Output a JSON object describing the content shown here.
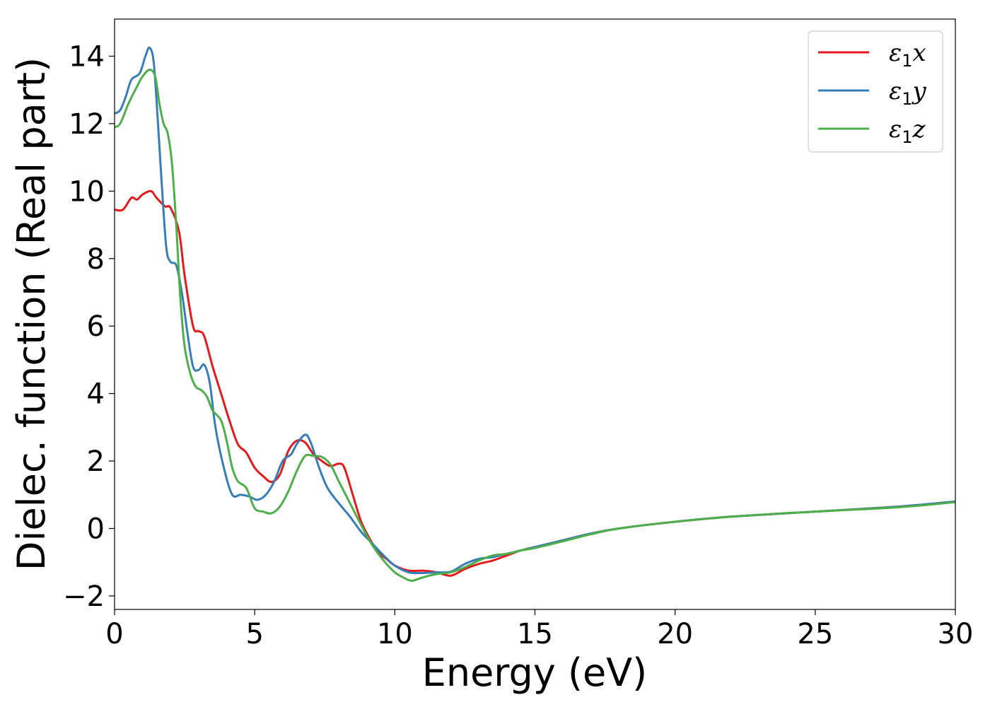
{
  "chart_data": {
    "type": "line",
    "title": "",
    "xlabel": "Energy (eV)",
    "ylabel": "Dielec. function (Real part)",
    "xlim": [
      0,
      30
    ],
    "ylim": [
      -2.4,
      15.1
    ],
    "xticks": [
      0,
      5,
      10,
      15,
      20,
      25,
      30
    ],
    "yticks": [
      -2,
      0,
      2,
      4,
      6,
      8,
      10,
      12,
      14
    ],
    "xtick_labels": [
      "0",
      "5",
      "10",
      "15",
      "20",
      "25",
      "30"
    ],
    "ytick_labels": [
      "−2",
      "0",
      "2",
      "4",
      "6",
      "8",
      "10",
      "12",
      "14"
    ],
    "grid": false,
    "legend_position": "top-right",
    "series": [
      {
        "name": "ε1x",
        "legend": {
          "base": "ε",
          "sub": "1",
          "var": "x"
        },
        "color": "#e41a1c",
        "points": [
          [
            0,
            9.45
          ],
          [
            0.3,
            9.45
          ],
          [
            0.6,
            9.8
          ],
          [
            0.8,
            9.75
          ],
          [
            1.0,
            9.9
          ],
          [
            1.3,
            10.0
          ],
          [
            1.5,
            9.8
          ],
          [
            1.8,
            9.55
          ],
          [
            2.0,
            9.5
          ],
          [
            2.3,
            8.8
          ],
          [
            2.5,
            7.5
          ],
          [
            2.8,
            6.0
          ],
          [
            3.0,
            5.85
          ],
          [
            3.2,
            5.7
          ],
          [
            3.5,
            4.8
          ],
          [
            3.8,
            4.0
          ],
          [
            4.1,
            3.2
          ],
          [
            4.4,
            2.5
          ],
          [
            4.7,
            2.25
          ],
          [
            5.0,
            1.8
          ],
          [
            5.3,
            1.55
          ],
          [
            5.6,
            1.38
          ],
          [
            5.9,
            1.6
          ],
          [
            6.2,
            2.3
          ],
          [
            6.5,
            2.6
          ],
          [
            6.8,
            2.55
          ],
          [
            7.1,
            2.2
          ],
          [
            7.4,
            2.0
          ],
          [
            7.7,
            1.85
          ],
          [
            8.0,
            1.92
          ],
          [
            8.2,
            1.8
          ],
          [
            8.5,
            1.0
          ],
          [
            8.8,
            0.2
          ],
          [
            9.1,
            -0.3
          ],
          [
            9.4,
            -0.7
          ],
          [
            9.7,
            -0.9
          ],
          [
            10.0,
            -1.1
          ],
          [
            10.5,
            -1.25
          ],
          [
            11.0,
            -1.25
          ],
          [
            11.5,
            -1.3
          ],
          [
            12.0,
            -1.4
          ],
          [
            12.5,
            -1.2
          ],
          [
            13.0,
            -1.05
          ],
          [
            13.5,
            -0.95
          ],
          [
            14.0,
            -0.8
          ],
          [
            14.5,
            -0.65
          ],
          [
            15.0,
            -0.55
          ],
          [
            16.0,
            -0.35
          ],
          [
            17.0,
            -0.15
          ],
          [
            18.0,
            0.0
          ],
          [
            20.0,
            0.2
          ],
          [
            22.0,
            0.35
          ],
          [
            25.0,
            0.5
          ],
          [
            28.0,
            0.65
          ],
          [
            30.0,
            0.8
          ]
        ]
      },
      {
        "name": "ε1y",
        "legend": {
          "base": "ε",
          "sub": "1",
          "var": "y"
        },
        "color": "#377eb8",
        "points": [
          [
            0,
            12.3
          ],
          [
            0.2,
            12.4
          ],
          [
            0.4,
            12.8
          ],
          [
            0.6,
            13.3
          ],
          [
            0.9,
            13.5
          ],
          [
            1.1,
            14.0
          ],
          [
            1.25,
            14.25
          ],
          [
            1.4,
            13.8
          ],
          [
            1.55,
            12.0
          ],
          [
            1.7,
            10.0
          ],
          [
            1.85,
            8.3
          ],
          [
            2.0,
            7.9
          ],
          [
            2.2,
            7.8
          ],
          [
            2.4,
            7.0
          ],
          [
            2.6,
            5.8
          ],
          [
            2.8,
            4.8
          ],
          [
            3.0,
            4.7
          ],
          [
            3.2,
            4.85
          ],
          [
            3.4,
            4.3
          ],
          [
            3.6,
            3.0
          ],
          [
            3.9,
            1.8
          ],
          [
            4.2,
            1.0
          ],
          [
            4.5,
            1.0
          ],
          [
            4.8,
            0.95
          ],
          [
            5.1,
            0.85
          ],
          [
            5.4,
            1.0
          ],
          [
            5.7,
            1.4
          ],
          [
            6.0,
            2.0
          ],
          [
            6.3,
            2.2
          ],
          [
            6.5,
            2.5
          ],
          [
            6.8,
            2.78
          ],
          [
            7.0,
            2.55
          ],
          [
            7.3,
            1.8
          ],
          [
            7.6,
            1.2
          ],
          [
            8.0,
            0.75
          ],
          [
            8.4,
            0.35
          ],
          [
            8.8,
            -0.1
          ],
          [
            9.2,
            -0.45
          ],
          [
            9.6,
            -0.8
          ],
          [
            10.0,
            -1.1
          ],
          [
            10.5,
            -1.3
          ],
          [
            11.0,
            -1.32
          ],
          [
            11.5,
            -1.3
          ],
          [
            12.0,
            -1.28
          ],
          [
            12.5,
            -1.05
          ],
          [
            13.0,
            -0.9
          ],
          [
            13.5,
            -0.85
          ],
          [
            14.0,
            -0.75
          ],
          [
            14.5,
            -0.65
          ],
          [
            15.0,
            -0.55
          ],
          [
            16.0,
            -0.35
          ],
          [
            17.0,
            -0.15
          ],
          [
            18.0,
            0.0
          ],
          [
            20.0,
            0.2
          ],
          [
            22.0,
            0.35
          ],
          [
            25.0,
            0.5
          ],
          [
            28.0,
            0.65
          ],
          [
            30.0,
            0.8
          ]
        ]
      },
      {
        "name": "ε1z",
        "legend": {
          "base": "ε",
          "sub": "1",
          "var": "z"
        },
        "color": "#4daf4a",
        "points": [
          [
            0,
            11.9
          ],
          [
            0.2,
            12.0
          ],
          [
            0.5,
            12.6
          ],
          [
            0.8,
            13.1
          ],
          [
            1.0,
            13.4
          ],
          [
            1.25,
            13.6
          ],
          [
            1.45,
            13.4
          ],
          [
            1.6,
            12.6
          ],
          [
            1.75,
            12.0
          ],
          [
            1.9,
            11.7
          ],
          [
            2.05,
            10.8
          ],
          [
            2.2,
            9.0
          ],
          [
            2.35,
            6.8
          ],
          [
            2.5,
            5.4
          ],
          [
            2.7,
            4.6
          ],
          [
            2.9,
            4.2
          ],
          [
            3.1,
            4.1
          ],
          [
            3.3,
            3.9
          ],
          [
            3.5,
            3.5
          ],
          [
            3.8,
            3.2
          ],
          [
            4.0,
            2.6
          ],
          [
            4.2,
            1.8
          ],
          [
            4.4,
            1.4
          ],
          [
            4.7,
            1.2
          ],
          [
            5.0,
            0.6
          ],
          [
            5.3,
            0.5
          ],
          [
            5.6,
            0.45
          ],
          [
            5.9,
            0.65
          ],
          [
            6.2,
            1.1
          ],
          [
            6.5,
            1.7
          ],
          [
            6.8,
            2.15
          ],
          [
            7.1,
            2.15
          ],
          [
            7.4,
            2.12
          ],
          [
            7.7,
            1.9
          ],
          [
            8.0,
            1.4
          ],
          [
            8.4,
            0.75
          ],
          [
            8.8,
            0.1
          ],
          [
            9.2,
            -0.5
          ],
          [
            9.6,
            -0.95
          ],
          [
            10.0,
            -1.3
          ],
          [
            10.3,
            -1.45
          ],
          [
            10.6,
            -1.55
          ],
          [
            11.0,
            -1.45
          ],
          [
            11.5,
            -1.35
          ],
          [
            12.0,
            -1.3
          ],
          [
            12.5,
            -1.15
          ],
          [
            13.0,
            -0.95
          ],
          [
            13.5,
            -0.8
          ],
          [
            14.0,
            -0.75
          ],
          [
            14.5,
            -0.65
          ],
          [
            15.0,
            -0.58
          ],
          [
            16.0,
            -0.38
          ],
          [
            17.0,
            -0.17
          ],
          [
            18.0,
            0.0
          ],
          [
            20.0,
            0.2
          ],
          [
            22.0,
            0.35
          ],
          [
            25.0,
            0.5
          ],
          [
            28.0,
            0.63
          ],
          [
            30.0,
            0.78
          ]
        ]
      }
    ]
  }
}
